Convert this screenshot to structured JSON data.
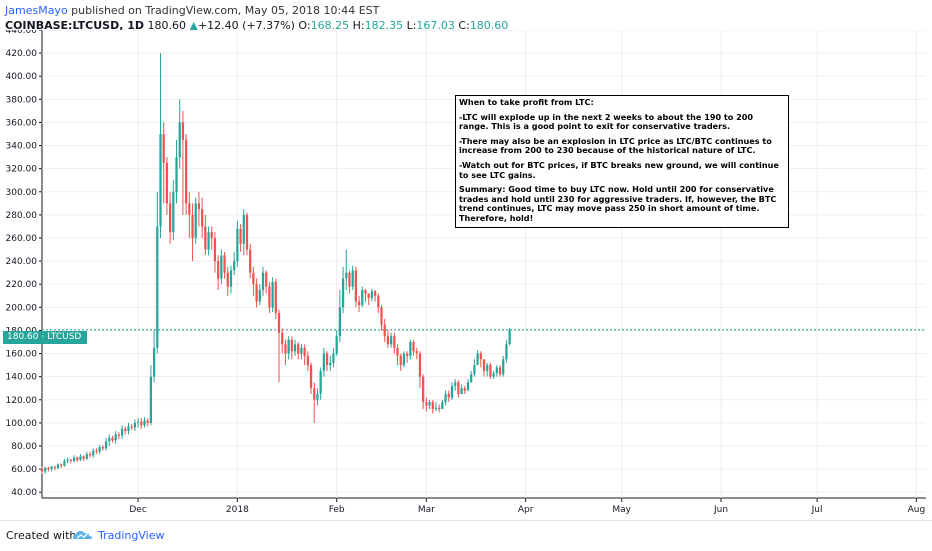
{
  "header": {
    "author": "JamesMayo",
    "published": "published on TradingView.com, May 05, 2018 10:44 EST",
    "symbol": "COINBASE:LTCUSD, 1D",
    "last": "180.60",
    "change_arrow": "▲",
    "change": "+12.40 (+7.37%)",
    "open_label": "O:",
    "open": "168.25",
    "high_label": "H:",
    "high": "182.35",
    "low_label": "L:",
    "low": "167.03",
    "close_label": "C:",
    "close": "180.60"
  },
  "price_tag": {
    "value": "180.60",
    "label": "LTCUSD"
  },
  "note": {
    "title": "When to take profit from LTC:",
    "p1": "-LTC will explode up in the next 2 weeks to about the 190 to 200 range. This is a good point to exit for conservative traders.",
    "p2": "-There may also be an explosion in LTC price as LTC/BTC continues to increase from 200 to 230 because of the historical nature of LTC.",
    "p3": "-Watch out for BTC prices, if BTC breaks new ground, we will continue to see LTC gains.",
    "p4": "Summary: Good time to buy LTC now. Hold until 200 for conservative trades and hold until 230 for aggressive traders. If, however, the BTC trend continues, LTC may move pass 250 in short amount of time. Therefore, hold!"
  },
  "footer": {
    "created": "Created with",
    "brand": "TradingView"
  },
  "colors": {
    "up": "#26a69a",
    "down": "#ef5350",
    "grid": "#eeeeee",
    "price_line": "#26a69a"
  },
  "chart_data": {
    "type": "candlestick",
    "ylim": [
      35,
      440
    ],
    "y_ticks": [
      40,
      60,
      80,
      100,
      120,
      140,
      160,
      180,
      200,
      220,
      240,
      260,
      280,
      300,
      320,
      340,
      360,
      380,
      400,
      420,
      440
    ],
    "y_tick_labels": [
      "40.00",
      "60.00",
      "80.00",
      "100.00",
      "120.00",
      "140.00",
      "160.00",
      "180.00",
      "200.00",
      "220.00",
      "240.00",
      "260.00",
      "280.00",
      "300.00",
      "320.00",
      "340.00",
      "360.00",
      "380.00",
      "400.00",
      "420.00",
      "440.00"
    ],
    "x_ticks": [
      {
        "label": "Dec",
        "date": "2017-12-01"
      },
      {
        "label": "2018",
        "date": "2018-01-01"
      },
      {
        "label": "Feb",
        "date": "2018-02-01"
      },
      {
        "label": "Mar",
        "date": "2018-03-01"
      },
      {
        "label": "Apr",
        "date": "2018-04-01"
      },
      {
        "label": "May",
        "date": "2018-05-01"
      },
      {
        "label": "Jun",
        "date": "2018-06-01"
      },
      {
        "label": "Jul",
        "date": "2018-07-01"
      },
      {
        "label": "Aug",
        "date": "2018-08-01"
      }
    ],
    "xlim": [
      "2017-11-01",
      "2018-08-04"
    ],
    "last_price": 180.6,
    "series": [
      {
        "name": "LTCUSD",
        "first_date": "2017-11-01",
        "interval": "1D",
        "close": [
          58,
          61,
          60,
          62,
          61,
          64,
          63,
          67,
          68,
          67,
          70,
          68,
          71,
          69,
          73,
          72,
          76,
          75,
          79,
          78,
          84,
          87,
          85,
          90,
          89,
          95,
          93,
          97,
          96,
          100,
          101,
          98,
          102,
          100,
          140,
          165,
          270,
          350,
          325,
          290,
          265,
          300,
          330,
          360,
          345,
          290,
          280,
          260,
          290,
          285,
          270,
          250,
          265,
          260,
          240,
          225,
          245,
          230,
          218,
          232,
          240,
          268,
          255,
          280,
          250,
          230,
          220,
          205,
          215,
          230,
          218,
          200,
          222,
          195,
          178,
          168,
          160,
          172,
          162,
          168,
          160,
          165,
          158,
          150,
          130,
          120,
          125,
          145,
          160,
          150,
          152,
          160,
          175,
          200,
          225,
          230,
          218,
          232,
          205,
          202,
          215,
          212,
          208,
          214,
          210,
          200,
          185,
          175,
          168,
          175,
          165,
          158,
          150,
          160,
          158,
          170,
          162,
          160,
          140,
          118,
          115,
          118,
          112,
          113,
          112,
          118,
          125,
          122,
          132,
          135,
          125,
          130,
          128,
          135,
          142,
          150,
          160,
          155,
          145,
          150,
          140,
          143,
          148,
          142,
          155,
          168,
          180.6
        ],
        "open": [
          60,
          58,
          61,
          60,
          62,
          61,
          64,
          63,
          67,
          68,
          67,
          70,
          68,
          71,
          69,
          73,
          72,
          76,
          75,
          79,
          78,
          84,
          87,
          85,
          90,
          89,
          95,
          93,
          97,
          96,
          100,
          101,
          98,
          102,
          100,
          140,
          165,
          270,
          350,
          325,
          290,
          265,
          300,
          330,
          360,
          345,
          290,
          280,
          260,
          290,
          285,
          270,
          250,
          265,
          260,
          240,
          225,
          245,
          230,
          218,
          232,
          240,
          268,
          255,
          280,
          250,
          230,
          220,
          205,
          215,
          230,
          218,
          200,
          222,
          195,
          178,
          168,
          160,
          172,
          162,
          168,
          160,
          165,
          158,
          150,
          130,
          120,
          125,
          145,
          160,
          150,
          152,
          160,
          175,
          200,
          225,
          230,
          218,
          232,
          205,
          202,
          215,
          212,
          208,
          214,
          210,
          200,
          185,
          175,
          168,
          175,
          165,
          158,
          150,
          160,
          158,
          170,
          162,
          160,
          140,
          118,
          115,
          118,
          112,
          113,
          112,
          118,
          125,
          122,
          132,
          135,
          125,
          130,
          128,
          135,
          142,
          150,
          160,
          155,
          145,
          150,
          140,
          143,
          148,
          142,
          155,
          168.25
        ],
        "high": [
          62,
          62,
          62,
          63,
          63,
          65,
          65,
          69,
          70,
          69,
          72,
          71,
          73,
          72,
          75,
          75,
          78,
          78,
          81,
          81,
          87,
          90,
          89,
          93,
          92,
          98,
          97,
          100,
          99,
          103,
          104,
          104,
          105,
          104,
          150,
          180,
          300,
          420,
          360,
          330,
          300,
          310,
          345,
          380,
          370,
          350,
          300,
          290,
          295,
          300,
          295,
          280,
          270,
          270,
          265,
          245,
          250,
          248,
          235,
          236,
          248,
          275,
          272,
          285,
          282,
          255,
          235,
          225,
          220,
          235,
          232,
          222,
          226,
          225,
          198,
          182,
          172,
          175,
          175,
          172,
          170,
          168,
          168,
          162,
          152,
          135,
          130,
          148,
          165,
          162,
          158,
          165,
          180,
          215,
          235,
          250,
          232,
          236,
          235,
          210,
          218,
          216,
          212,
          216,
          215,
          212,
          202,
          190,
          180,
          178,
          178,
          168,
          160,
          162,
          162,
          172,
          172,
          165,
          162,
          142,
          122,
          120,
          120,
          118,
          116,
          120,
          128,
          128,
          135,
          138,
          137,
          133,
          132,
          138,
          145,
          155,
          163,
          162,
          155,
          152,
          152,
          145,
          150,
          150,
          158,
          172,
          182.35
        ],
        "low": [
          56,
          56,
          58,
          58,
          59,
          60,
          61,
          62,
          65,
          65,
          66,
          66,
          67,
          67,
          68,
          70,
          70,
          73,
          73,
          76,
          76,
          80,
          83,
          82,
          86,
          86,
          90,
          90,
          94,
          93,
          96,
          95,
          96,
          97,
          98,
          135,
          160,
          260,
          290,
          280,
          255,
          258,
          290,
          320,
          280,
          280,
          260,
          240,
          255,
          270,
          260,
          245,
          245,
          250,
          230,
          215,
          220,
          225,
          210,
          212,
          228,
          235,
          248,
          245,
          245,
          225,
          210,
          200,
          202,
          210,
          212,
          195,
          196,
          190,
          135,
          160,
          150,
          155,
          155,
          158,
          155,
          155,
          150,
          145,
          125,
          100,
          115,
          120,
          140,
          145,
          145,
          148,
          158,
          170,
          195,
          215,
          212,
          215,
          200,
          196,
          200,
          205,
          202,
          205,
          205,
          195,
          180,
          170,
          165,
          165,
          160,
          150,
          145,
          148,
          152,
          155,
          158,
          155,
          130,
          112,
          110,
          112,
          108,
          110,
          109,
          112,
          115,
          118,
          120,
          128,
          122,
          125,
          125,
          128,
          135,
          140,
          150,
          148,
          140,
          140,
          138,
          138,
          140,
          140,
          140,
          152,
          167.03
        ]
      }
    ]
  }
}
